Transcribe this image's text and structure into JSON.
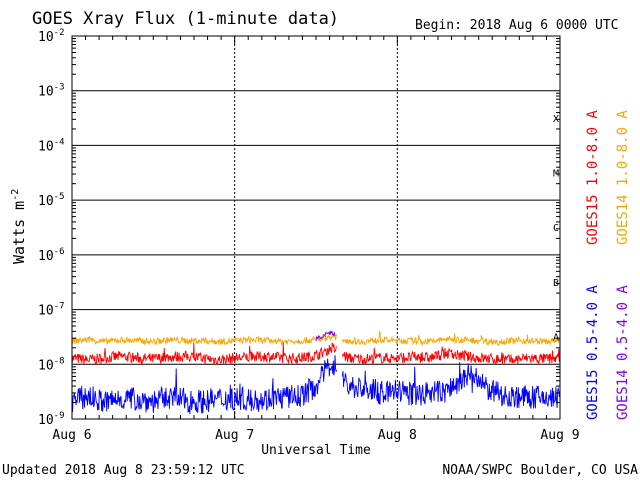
{
  "chart_data": {
    "type": "line",
    "title": "GOES Xray Flux (1-minute data)",
    "begin_label": "Begin:  2018 Aug 6 0000 UTC",
    "ylabel_main": "Watts m",
    "ylabel_exp": "-2",
    "xlabel": "Universal Time",
    "x_ticks": [
      "Aug 6",
      "Aug 7",
      "Aug 8",
      "Aug 9"
    ],
    "x_range_days": [
      0,
      3
    ],
    "y_scale": "log",
    "y_range": [
      1e-09,
      0.01
    ],
    "y_tick_labels": [
      {
        "base": "10",
        "exp": "-9"
      },
      {
        "base": "10",
        "exp": "-8"
      },
      {
        "base": "10",
        "exp": "-7"
      },
      {
        "base": "10",
        "exp": "-6"
      },
      {
        "base": "10",
        "exp": "-5"
      },
      {
        "base": "10",
        "exp": "-4"
      },
      {
        "base": "10",
        "exp": "-3"
      },
      {
        "base": "10",
        "exp": "-2"
      }
    ],
    "flare_classes": [
      "A",
      "B",
      "C",
      "M",
      "X"
    ],
    "grid": true,
    "data_gap_days": [
      1.63,
      1.66
    ],
    "series": [
      {
        "name": "GOES15 1.0-8.0 A",
        "color": "#ff0000",
        "x": [
          0,
          0.1,
          0.2,
          0.3,
          0.4,
          0.5,
          0.6,
          0.7,
          0.8,
          0.9,
          1.0,
          1.1,
          1.2,
          1.3,
          1.4,
          1.5,
          1.6,
          1.7,
          1.8,
          1.9,
          2.0,
          2.1,
          2.2,
          2.3,
          2.4,
          2.5,
          2.6,
          2.7,
          2.8,
          2.9,
          3.0
        ],
        "values": [
          1.3e-08,
          1.2e-08,
          1.3e-08,
          1.4e-08,
          1.3e-08,
          1.25e-08,
          1.35e-08,
          1.4e-08,
          1.3e-08,
          1.2e-08,
          1.3e-08,
          1.35e-08,
          1.4e-08,
          1.3e-08,
          1.3e-08,
          1.45e-08,
          2e-08,
          1.3e-08,
          1.25e-08,
          1.3e-08,
          1.3e-08,
          1.35e-08,
          1.3e-08,
          1.6e-08,
          1.4e-08,
          1.3e-08,
          1.25e-08,
          1.2e-08,
          1.3e-08,
          1.25e-08,
          1.3e-08
        ]
      },
      {
        "name": "GOES14 1.0-8.0 A",
        "color": "#ffa500",
        "x": [
          0,
          0.1,
          0.2,
          0.3,
          0.4,
          0.5,
          0.6,
          0.7,
          0.8,
          0.9,
          1.0,
          1.1,
          1.2,
          1.3,
          1.4,
          1.5,
          1.6,
          1.7,
          1.8,
          1.9,
          2.0,
          2.1,
          2.2,
          2.3,
          2.4,
          2.5,
          2.6,
          2.7,
          2.8,
          2.9,
          3.0
        ],
        "values": [
          2.7e-08,
          2.8e-08,
          2.6e-08,
          2.8e-08,
          2.7e-08,
          2.6e-08,
          2.8e-08,
          2.7e-08,
          2.7e-08,
          2.6e-08,
          2.7e-08,
          2.8e-08,
          2.7e-08,
          2.6e-08,
          2.7e-08,
          2.8e-08,
          3.2e-08,
          2.7e-08,
          2.6e-08,
          2.8e-08,
          2.7e-08,
          2.7e-08,
          2.6e-08,
          2.9e-08,
          2.8e-08,
          2.7e-08,
          2.6e-08,
          2.7e-08,
          2.7e-08,
          2.6e-08,
          2.7e-08
        ]
      },
      {
        "name": "GOES15 0.5-4.0 A",
        "color": "#0000ff",
        "x": [
          0,
          0.1,
          0.2,
          0.3,
          0.4,
          0.5,
          0.6,
          0.7,
          0.8,
          0.9,
          1.0,
          1.1,
          1.2,
          1.3,
          1.4,
          1.5,
          1.55,
          1.6,
          1.7,
          1.8,
          1.9,
          2.0,
          2.1,
          2.2,
          2.3,
          2.4,
          2.45,
          2.5,
          2.6,
          2.7,
          2.8,
          2.9,
          3.0
        ],
        "values": [
          2.2e-09,
          2.6e-09,
          2e-09,
          2.4e-09,
          2.3e-09,
          2.1e-09,
          2.5e-09,
          2.2e-09,
          2.1e-09,
          2.3e-09,
          2.4e-09,
          2.2e-09,
          2.3e-09,
          2.5e-09,
          2.6e-09,
          4e-09,
          7e-09,
          1.1e-08,
          4e-09,
          3.5e-09,
          3e-09,
          3.3e-09,
          2.8e-09,
          3e-09,
          3.2e-09,
          5e-09,
          7e-09,
          4.5e-09,
          3e-09,
          2.6e-09,
          2.5e-09,
          2.4e-09,
          2.5e-09
        ]
      },
      {
        "name": "GOES14 0.5-4.0 A",
        "color": "#7f00ff",
        "x": [
          1.5,
          1.55,
          1.6,
          1.62
        ],
        "values": [
          2.9e-08,
          3.4e-08,
          3.9e-08,
          3.3e-08
        ]
      }
    ]
  },
  "footer": {
    "updated": "Updated 2018 Aug  8 23:59:12 UTC",
    "source": "NOAA/SWPC Boulder, CO USA"
  }
}
